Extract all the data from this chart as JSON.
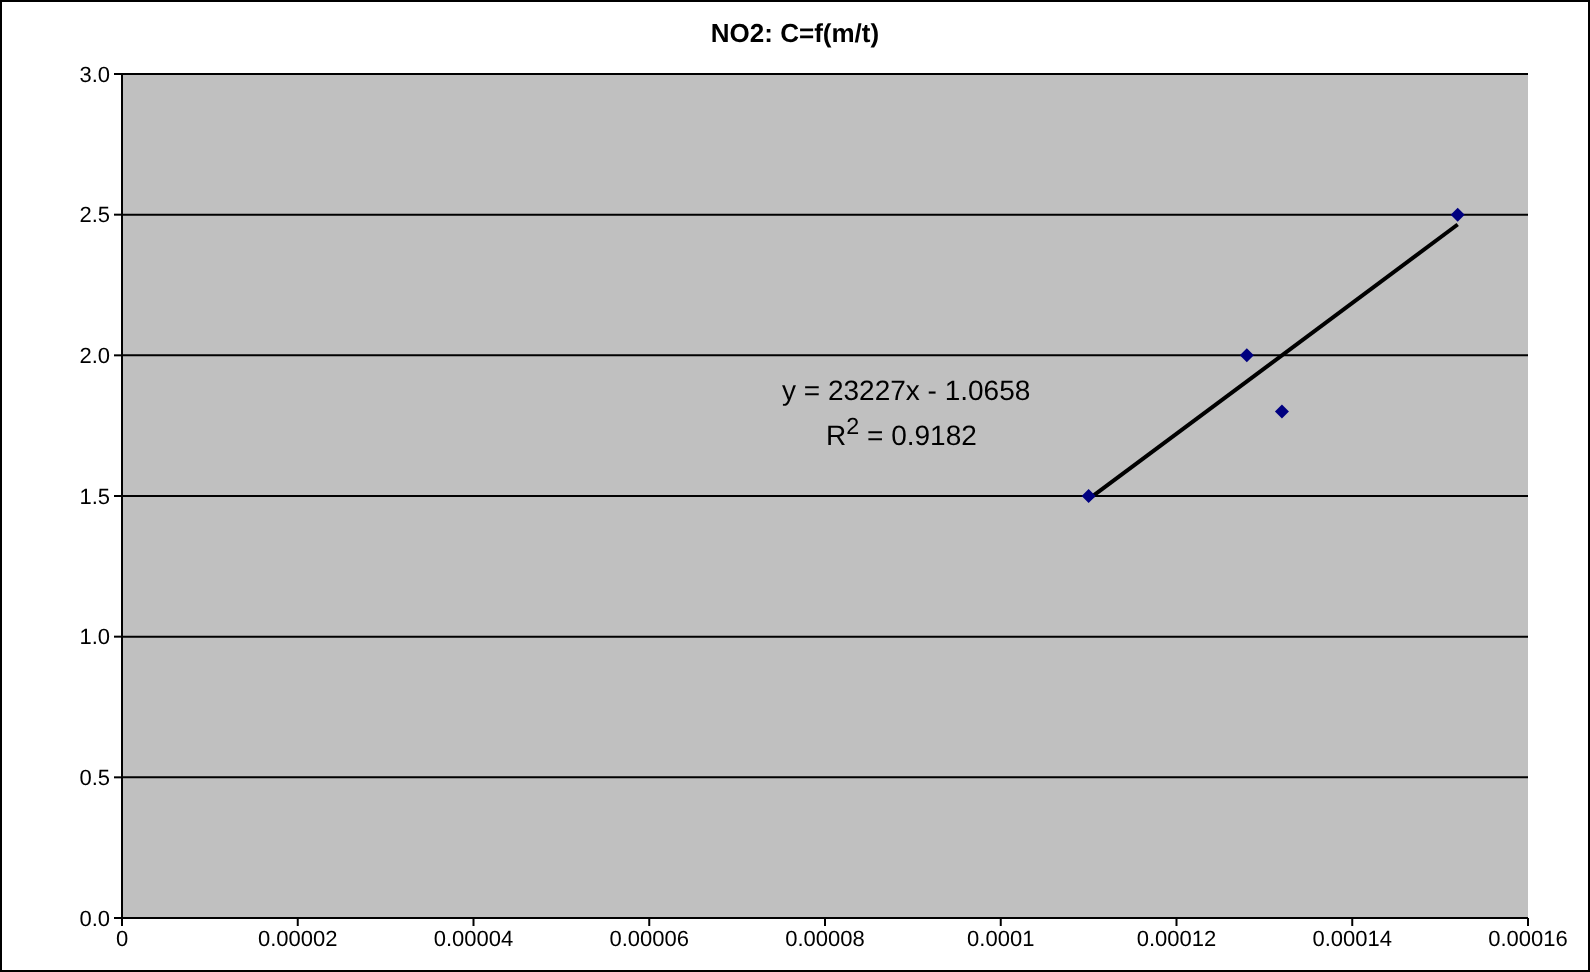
{
  "chart_data": {
    "type": "scatter",
    "title": "NO2: C=f(m/t)",
    "series": [
      {
        "x": [
          0.00011,
          0.000128,
          0.000132,
          0.000152
        ],
        "values": [
          1.5,
          2.0,
          1.8,
          2.5
        ],
        "color": "#000080",
        "marker": "diamond"
      },
      {
        "type": "line",
        "x": [
          0.00011,
          0.000152
        ],
        "values": [
          1.489,
          2.465
        ],
        "color": "#000000",
        "marker": "none"
      }
    ],
    "xlim": [
      0,
      0.00016
    ],
    "xticks": [
      0,
      {
        "value": 2e-05,
        "label": "0.00002"
      },
      {
        "value": 4e-05,
        "label": "0.00004"
      },
      {
        "value": 6e-05,
        "label": "0.00006"
      },
      {
        "value": 8e-05,
        "label": "0.00008"
      },
      0.0001,
      0.00012,
      0.00014,
      0.00016
    ],
    "ylim": [
      0,
      3
    ],
    "yticks": [
      {
        "value": 0,
        "label": "0.0"
      },
      {
        "value": 0.5,
        "label": "0.5"
      },
      {
        "value": 1,
        "label": "1.0"
      },
      {
        "value": 1.5,
        "label": "1.5"
      },
      {
        "value": 2,
        "label": "2.0"
      },
      {
        "value": 2.5,
        "label": "2.5"
      },
      {
        "value": 3,
        "label": "3.0"
      }
    ],
    "grid": "y",
    "legend": false,
    "annotations": [
      "y = 23227x - 1.0658",
      "R$^{2}$ = 0.9182"
    ]
  }
}
